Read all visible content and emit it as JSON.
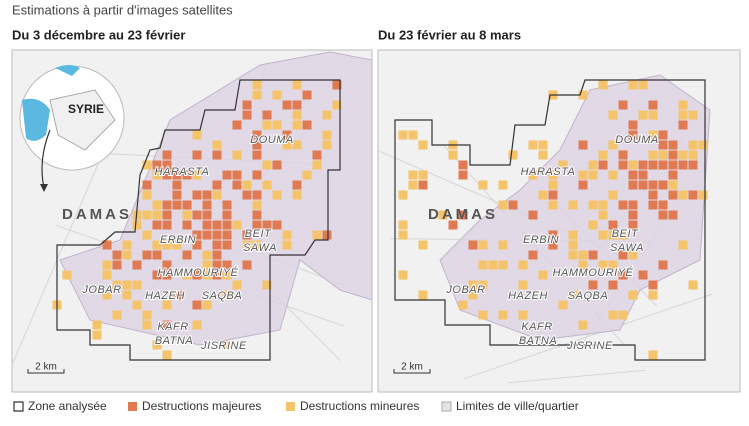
{
  "subtitle": "Estimations à partir d'images satellites",
  "panels": [
    {
      "title": "Du 3 décembre au 23 février",
      "inset_label": "SYRIE",
      "city": "DAMAS",
      "places": [
        "DOUMA",
        "HARASTA",
        "ERBIN",
        "BEIT",
        "SAWA",
        "HAMMOURIYÉ",
        "JOBAR",
        "HAZEH",
        "SAQBA",
        "KAFR",
        "BATNA",
        "JISRINE"
      ],
      "scale": "2 km"
    },
    {
      "title": "Du 23 février au 8 mars",
      "city": "DAMAS",
      "places": [
        "DOUMA",
        "HARASTA",
        "ERBIN",
        "BEIT",
        "SAWA",
        "HAMMOURIYÉ",
        "JOBAR",
        "HAZEH",
        "SAQBA",
        "KAFR",
        "BATNA",
        "JISRINE"
      ],
      "scale": "2 km"
    }
  ],
  "legend": [
    "Zone analysée",
    "Destructions majeures",
    "Destructions mineures",
    "Limites de ville/quartier"
  ]
}
